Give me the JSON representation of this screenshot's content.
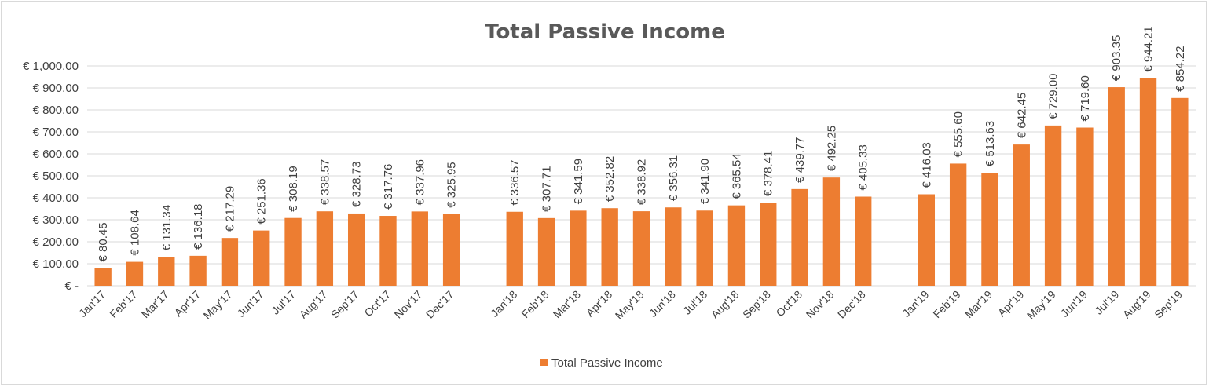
{
  "chart_data": {
    "type": "bar",
    "title": "Total Passive Income",
    "xlabel": "",
    "ylabel": "",
    "ylim": [
      0,
      1000
    ],
    "yticks": [
      0,
      100,
      200,
      300,
      400,
      500,
      600,
      700,
      800,
      900,
      1000
    ],
    "ytick_labels": [
      "€ -",
      "€ 100.00",
      "€ 200.00",
      "€ 300.00",
      "€ 400.00",
      "€ 500.00",
      "€ 600.00",
      "€ 700.00",
      "€ 800.00",
      "€ 900.00",
      "€ 1,000.00"
    ],
    "grid": true,
    "legend_position": "bottom",
    "bar_color": "#ED7D31",
    "categories": [
      "Jan'17",
      "Feb'17",
      "Mar'17",
      "Apr'17",
      "May'17",
      "Jun'17",
      "Jul'17",
      "Aug'17",
      "Sep'17",
      "Oct'17",
      "Nov'17",
      "Dec'17",
      "Jan'18",
      "Feb'18",
      "Mar'18",
      "Apr'18",
      "May'18",
      "Jun'18",
      "Jul'18",
      "Aug'18",
      "Sep'18",
      "Oct'18",
      "Nov'18",
      "Dec'18",
      "Jan'19",
      "Feb'19",
      "Mar'19",
      "Apr'19",
      "May'19",
      "Jun'19",
      "Jul'19",
      "Aug'19",
      "Sep'19"
    ],
    "groups": [
      12,
      12,
      9
    ],
    "series": [
      {
        "name": "Total Passive Income",
        "values": [
          80.45,
          108.64,
          131.34,
          136.18,
          217.29,
          251.36,
          308.19,
          338.57,
          328.73,
          317.76,
          337.96,
          325.95,
          336.57,
          307.71,
          341.59,
          352.82,
          338.92,
          356.31,
          341.9,
          365.54,
          378.41,
          439.77,
          492.25,
          405.33,
          416.03,
          555.6,
          513.63,
          642.45,
          729.0,
          719.6,
          903.35,
          944.21,
          854.22
        ],
        "labels": [
          "€ 80.45",
          "€ 108.64",
          "€ 131.34",
          "€ 136.18",
          "€ 217.29",
          "€ 251.36",
          "€ 308.19",
          "€ 338.57",
          "€ 328.73",
          "€ 317.76",
          "€ 337.96",
          "€ 325.95",
          "€ 336.57",
          "€ 307.71",
          "€ 341.59",
          "€ 352.82",
          "€ 338.92",
          "€ 356.31",
          "€ 341.90",
          "€ 365.54",
          "€ 378.41",
          "€ 439.77",
          "€ 492.25",
          "€ 405.33",
          "€ 416.03",
          "€ 555.60",
          "€ 513.63",
          "€ 642.45",
          "€ 729.00",
          "€ 719.60",
          "€ 903.35",
          "€ 944.21",
          "€ 854.22"
        ]
      }
    ]
  }
}
